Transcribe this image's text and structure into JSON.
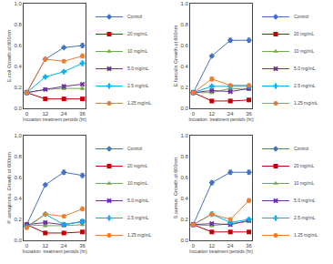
{
  "chart_data": [
    {
      "type": "line",
      "xlabel": "Incuation treatment peroids (hr)",
      "ylabel": "E.coli Growth at 600nm",
      "x": [
        0,
        12,
        24,
        36
      ],
      "xlim": [
        -2,
        38
      ],
      "xticks": [
        0,
        12,
        24,
        36
      ],
      "ylim": [
        0.0,
        1.0
      ],
      "yticks": [
        {
          "value": 0.0,
          "label": "0.0"
        },
        0.2,
        0.4,
        0.6,
        0.8,
        {
          "value": 1.0,
          "label": "1.0"
        }
      ],
      "grid": false,
      "legend": "right",
      "series": [
        {
          "name": "Control",
          "color": "#4472C4",
          "marker": "diamond",
          "values": [
            0.15,
            0.47,
            0.58,
            0.6
          ],
          "errors": [
            0.01,
            0.01,
            0.01,
            0.02
          ]
        },
        {
          "name": "20 mg/mL",
          "color": "#C00000",
          "marker": "square",
          "values": [
            0.15,
            0.09,
            0.09,
            0.09
          ],
          "errors": [
            0.01,
            0.01,
            0.01,
            0.01
          ]
        },
        {
          "name": "10 mg/mL",
          "color": "#70AD47",
          "marker": "triangle-up",
          "values": [
            0.15,
            0.18,
            0.19,
            0.19
          ],
          "errors": [
            0.01,
            0.01,
            0.01,
            0.01
          ]
        },
        {
          "name": "5.0 mg/mL",
          "color": "#7030A0",
          "marker": "x",
          "values": [
            0.15,
            0.18,
            0.21,
            0.23
          ],
          "errors": [
            0.01,
            0.01,
            0.01,
            0.01
          ]
        },
        {
          "name": "2.5 mg/mL",
          "color": "#00B0F0",
          "marker": "cross",
          "values": [
            0.15,
            0.3,
            0.35,
            0.43
          ],
          "errors": [
            0.01,
            0.01,
            0.01,
            0.02
          ]
        },
        {
          "name": "1.25 mg/mL",
          "color": "#ED7D31",
          "marker": "circle",
          "values": [
            0.15,
            0.47,
            0.45,
            0.5
          ],
          "errors": [
            0.01,
            0.01,
            0.01,
            0.02
          ]
        }
      ]
    },
    {
      "type": "line",
      "xlabel": "Incuation  treatment peroids (hr)",
      "ylabel": "E.faecalis Growth at 600nm",
      "x": [
        0,
        12,
        24,
        36
      ],
      "xlim": [
        -2,
        38
      ],
      "xticks": [
        0,
        12,
        24,
        36
      ],
      "ylim": [
        0.0,
        1.0
      ],
      "yticks": [
        {
          "value": 0.0,
          "label": "0.0"
        },
        0.2,
        0.4,
        0.6,
        0.8,
        {
          "value": 1.0,
          "label": "1.0"
        }
      ],
      "grid": false,
      "legend": "right",
      "series": [
        {
          "name": "Control",
          "color": "#4472C4",
          "marker": "diamond",
          "values": [
            0.15,
            0.5,
            0.65,
            0.65
          ],
          "errors": [
            0.01,
            0.01,
            0.02,
            0.02
          ]
        },
        {
          "name": "20 mg/mL",
          "color": "#C00000",
          "marker": "square",
          "values": [
            0.15,
            0.07,
            0.07,
            0.08
          ],
          "errors": [
            0.01,
            0.01,
            0.01,
            0.01
          ]
        },
        {
          "name": "10 mg/mL",
          "color": "#70AD47",
          "marker": "triangle-up",
          "values": [
            0.15,
            0.15,
            0.19,
            0.18
          ],
          "errors": [
            0.01,
            0.01,
            0.01,
            0.01
          ]
        },
        {
          "name": "5.0 mg/mL",
          "color": "#7030A0",
          "marker": "x",
          "values": [
            0.15,
            0.17,
            0.16,
            0.19
          ],
          "errors": [
            0.01,
            0.01,
            0.01,
            0.01
          ]
        },
        {
          "name": "2.5 mg/mL",
          "color": "#00B0F0",
          "marker": "cross",
          "values": [
            0.15,
            0.21,
            0.21,
            0.21
          ],
          "errors": [
            0.01,
            0.01,
            0.01,
            0.01
          ]
        },
        {
          "name": "1.25 mg/mL",
          "color": "#ED7D31",
          "marker": "circle",
          "values": [
            0.15,
            0.28,
            0.22,
            0.22
          ],
          "errors": [
            0.01,
            0.02,
            0.01,
            0.01
          ]
        }
      ]
    },
    {
      "type": "line",
      "xlabel": "Incoation  treatment peroids (hr)",
      "ylabel": "P. aeruginosa  Growth at 600nm",
      "x": [
        0,
        12,
        24,
        36
      ],
      "xlim": [
        -2,
        38
      ],
      "xticks": [
        0,
        12,
        24,
        36
      ],
      "ylim": [
        0.0,
        1.0
      ],
      "yticks": [
        {
          "value": 0.0,
          "label": "0.0"
        },
        0.2,
        0.4,
        0.6,
        0.8,
        {
          "value": 1.0,
          "label": "1.0"
        }
      ],
      "grid": false,
      "legend": "right",
      "series": [
        {
          "name": "Control",
          "color": "#4472C4",
          "marker": "diamond",
          "values": [
            0.15,
            0.53,
            0.65,
            0.62
          ],
          "errors": [
            0.01,
            0.01,
            0.02,
            0.02
          ]
        },
        {
          "name": "20 mg/mL",
          "color": "#C00000",
          "marker": "square",
          "values": [
            0.15,
            0.07,
            0.07,
            0.08
          ],
          "errors": [
            0.01,
            0.01,
            0.01,
            0.01
          ]
        },
        {
          "name": "10 mg/mL",
          "color": "#70AD47",
          "marker": "triangle-up",
          "values": [
            0.15,
            0.14,
            0.14,
            0.15
          ],
          "errors": [
            0.01,
            0.01,
            0.01,
            0.01
          ]
        },
        {
          "name": "5.0 mg/mL",
          "color": "#7030A0",
          "marker": "x",
          "values": [
            0.15,
            0.17,
            0.15,
            0.18
          ],
          "errors": [
            0.01,
            0.01,
            0.01,
            0.01
          ]
        },
        {
          "name": "2.5 mg/mL",
          "color": "#00B0F0",
          "marker": "cross",
          "values": [
            0.13,
            0.25,
            0.15,
            0.18
          ],
          "errors": [
            0.01,
            0.01,
            0.01,
            0.01
          ]
        },
        {
          "name": "1.25 mg/mL",
          "color": "#ED7D31",
          "marker": "circle",
          "values": [
            0.12,
            0.25,
            0.23,
            0.3
          ],
          "errors": [
            0.01,
            0.01,
            0.01,
            0.02
          ]
        }
      ]
    },
    {
      "type": "line",
      "xlabel": "Incuation treatment peroids (hr)",
      "ylabel": "S.aureus  Growth at 600nm",
      "x": [
        0,
        12,
        24,
        36
      ],
      "xlim": [
        -2,
        38
      ],
      "xticks": [
        0,
        12,
        24,
        36
      ],
      "ylim": [
        0.0,
        1.0
      ],
      "yticks": [
        {
          "value": 0.0,
          "label": "0.0"
        },
        0.2,
        0.4,
        0.6,
        0.8,
        {
          "value": 1.0,
          "label": "1.0"
        }
      ],
      "grid": false,
      "legend": "right",
      "series": [
        {
          "name": "Control",
          "color": "#4472C4",
          "marker": "diamond",
          "values": [
            0.15,
            0.55,
            0.65,
            0.65
          ],
          "errors": [
            0.01,
            0.02,
            0.02,
            0.02
          ]
        },
        {
          "name": "20 mg/mL",
          "color": "#C00000",
          "marker": "square",
          "values": [
            0.15,
            0.08,
            0.08,
            0.08
          ],
          "errors": [
            0.01,
            0.01,
            0.01,
            0.01
          ]
        },
        {
          "name": "10 mg/mL",
          "color": "#70AD47",
          "marker": "triangle-up",
          "values": [
            0.15,
            0.14,
            0.16,
            0.18
          ],
          "errors": [
            0.01,
            0.01,
            0.01,
            0.01
          ]
        },
        {
          "name": "5.0 mg/mL",
          "color": "#7030A0",
          "marker": "x",
          "values": [
            0.15,
            0.16,
            0.15,
            0.19
          ],
          "errors": [
            0.01,
            0.01,
            0.01,
            0.01
          ]
        },
        {
          "name": "2.5 mg/mL",
          "color": "#00B0F0",
          "marker": "cross",
          "values": [
            0.15,
            0.25,
            0.17,
            0.2
          ],
          "errors": [
            0.01,
            0.02,
            0.01,
            0.01
          ]
        },
        {
          "name": "1.25 mg/mL",
          "color": "#ED7D31",
          "marker": "circle",
          "values": [
            0.15,
            0.25,
            0.2,
            0.38
          ],
          "errors": [
            0.01,
            0.01,
            0.01,
            0.02
          ]
        }
      ]
    }
  ]
}
